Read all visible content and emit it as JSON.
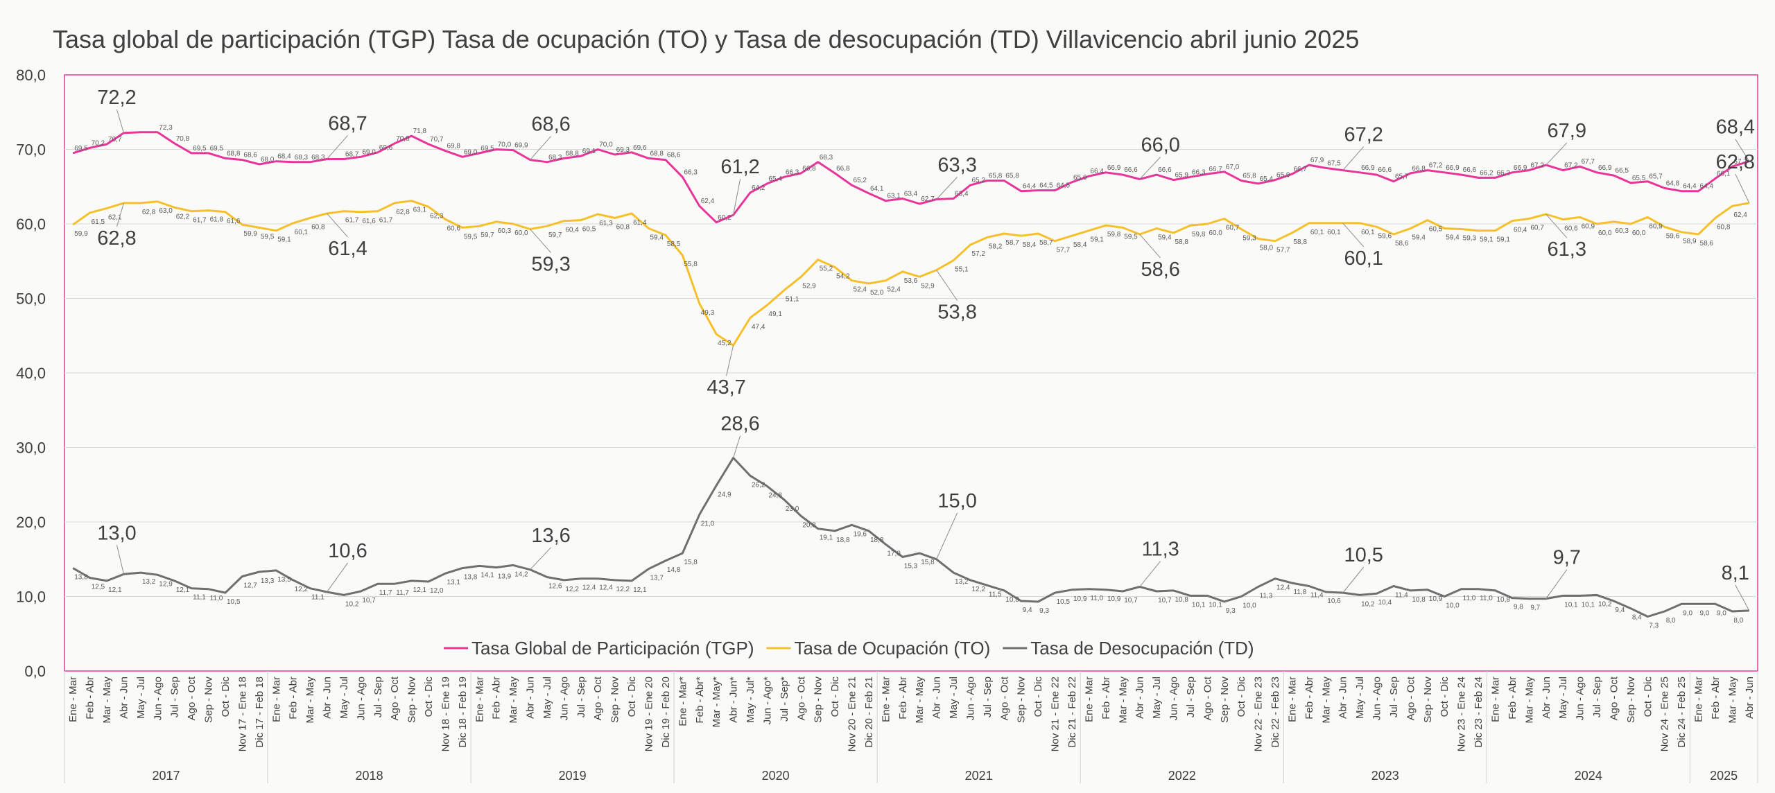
{
  "chart_data": {
    "type": "line",
    "title": "Tasa global de participación (TGP) Tasa de ocupación (TO) y Tasa de desocupación (TD) Villavicencio abril junio 2025",
    "xlabel": "",
    "ylabel": "",
    "ylim": [
      0,
      80
    ],
    "yticks": [
      "0,0",
      "10,0",
      "20,0",
      "30,0",
      "40,0",
      "50,0",
      "60,0",
      "70,0",
      "80,0"
    ],
    "grid": true,
    "legend_position": "bottom-inside",
    "categories": [
      "Ene - Mar",
      "Feb - Abr",
      "Mar - May",
      "Abr - Jun",
      "May - Jul",
      "Jun - Ago",
      "Jul - Sep",
      "Ago - Oct",
      "Sep - Nov",
      "Oct - Dic",
      "Nov 17 - Ene 18",
      "Dic 17 - Feb 18",
      "Ene - Mar",
      "Feb - Abr",
      "Mar - May",
      "Abr - Jun",
      "May - Jul",
      "Jun - Ago",
      "Jul - Sep",
      "Ago - Oct",
      "Sep - Nov",
      "Oct - Dic",
      "Nov 18 - Ene 19",
      "Dic 18 - Feb 19",
      "Ene - Mar",
      "Feb - Abr",
      "Mar - May",
      "Abr - Jun",
      "May - Jul",
      "Jun - Ago",
      "Jul - Sep",
      "Ago - Oct",
      "Sep - Nov",
      "Oct - Dic",
      "Nov 19 - Ene 20",
      "Dic 19 - Feb 20",
      "Ene - Mar*",
      "Feb - Abr*",
      "Mar - May*",
      "Abr - Jun*",
      "May - Jul*",
      "Jun - Ago*",
      "Jul - Sep*",
      "Ago - Oct",
      "Sep - Nov",
      "Oct - Dic",
      "Nov 20 - Ene 21",
      "Dic 20 - Feb 21",
      "Ene - Mar",
      "Feb - Abr",
      "Mar - May",
      "Abr - Jun",
      "May - Jul",
      "Jun - Ago",
      "Jul - Sep",
      "Ago - Oct",
      "Sep - Nov",
      "Oct - Dic",
      "Nov 21 - Ene 22",
      "Dic 21 - Feb 22",
      "Ene - Mar",
      "Feb - Abr",
      "Mar - May",
      "Abr - Jun",
      "May - Jul",
      "Jun - Ago",
      "Jul - Sep",
      "Ago - Oct",
      "Sep - Nov",
      "Oct - Dic",
      "Nov 22 - Ene 23",
      "Dic 22 - Feb 23",
      "Ene - Mar",
      "Feb - Abr",
      "Mar - May",
      "Abr - Jun",
      "May - Jul",
      "Jun - Ago",
      "Jul - Sep",
      "Ago - Oct",
      "Sep - Nov",
      "Oct - Dic",
      "Nov 23 - Ene 24",
      "Dic 23 - Feb 24",
      "Ene - Mar",
      "Feb - Abr",
      "Mar - May",
      "Abr - Jun",
      "May - Jul",
      "Jun - Ago",
      "Jul - Sep",
      "Ago - Oct",
      "Sep - Nov",
      "Oct - Dic",
      "Nov 24 - Ene 25",
      "Dic 24 - Feb 25",
      "Ene - Mar",
      "Feb - Abr",
      "Mar - May",
      "Abr - Jun"
    ],
    "year_groups": [
      {
        "label": "2017",
        "count": 12
      },
      {
        "label": "2018",
        "count": 12
      },
      {
        "label": "2019",
        "count": 12
      },
      {
        "label": "2020",
        "count": 12
      },
      {
        "label": "2021",
        "count": 12
      },
      {
        "label": "2022",
        "count": 12
      },
      {
        "label": "2023",
        "count": 12
      },
      {
        "label": "2024",
        "count": 12
      },
      {
        "label": "2025",
        "count": 4
      }
    ],
    "series": [
      {
        "name": "Tasa Global de Participación (TGP)",
        "color": "#e8359a",
        "values": [
          69.5,
          70.2,
          70.7,
          72.2,
          72.3,
          72.3,
          70.8,
          69.5,
          69.5,
          68.8,
          68.6,
          68.0,
          68.4,
          68.3,
          68.3,
          68.7,
          68.7,
          69.0,
          69.6,
          70.8,
          71.8,
          70.7,
          69.8,
          69.0,
          69.5,
          70.0,
          69.9,
          68.6,
          68.3,
          68.8,
          69.1,
          70.0,
          69.3,
          69.6,
          68.8,
          68.6,
          66.3,
          62.4,
          60.2,
          61.2,
          64.2,
          65.4,
          66.3,
          66.8,
          68.3,
          66.8,
          65.2,
          64.1,
          63.1,
          63.4,
          62.7,
          63.3,
          63.4,
          65.2,
          65.8,
          65.8,
          64.4,
          64.5,
          64.5,
          65.6,
          66.4,
          66.9,
          66.6,
          66.0,
          66.6,
          65.9,
          66.3,
          66.7,
          67.0,
          65.8,
          65.4,
          65.9,
          66.7,
          67.9,
          67.5,
          67.2,
          66.9,
          66.6,
          65.7,
          66.8,
          67.2,
          66.9,
          66.6,
          66.2,
          66.2,
          66.9,
          67.2,
          67.9,
          67.2,
          67.7,
          66.9,
          66.5,
          65.5,
          65.7,
          64.8,
          64.4,
          64.4,
          66.1,
          67.7,
          68.4
        ],
        "data_labels": [
          "69,5",
          "70,2",
          "70,7",
          "",
          "",
          "72,3",
          "70,8",
          "69,5",
          "69,5",
          "68,8",
          "68,6",
          "68,0",
          "68,4",
          "68,3",
          "68,3",
          "",
          "68,7",
          "69,0",
          "69,6",
          "70,8",
          "71,8",
          "70,7",
          "69,8",
          "69,0",
          "69,5",
          "70,0",
          "69,9",
          "",
          "68,3",
          "68,8",
          "69,1",
          "70,0",
          "69,3",
          "69,6",
          "68,8",
          "68,6",
          "66,3",
          "62,4",
          "60,2",
          "",
          "64,2",
          "65,4",
          "66,3",
          "66,8",
          "68,3",
          "66,8",
          "65,2",
          "64,1",
          "63,1",
          "63,4",
          "62,7",
          "",
          "63,4",
          "65,2",
          "65,8",
          "65,8",
          "64,4",
          "64,5",
          "64,5",
          "65,6",
          "66,4",
          "66,9",
          "66,6",
          "",
          "66,6",
          "65,9",
          "66,3",
          "66,7",
          "67,0",
          "65,8",
          "65,4",
          "65,9",
          "66,7",
          "67,9",
          "67,5",
          "",
          "66,9",
          "66,6",
          "65,7",
          "66,8",
          "67,2",
          "66,9",
          "66,6",
          "66,2",
          "66,2",
          "66,9",
          "67,2",
          "",
          "67,2",
          "67,7",
          "66,9",
          "66,5",
          "65,5",
          "65,7",
          "64,8",
          "64,4",
          "64,4",
          "66,1",
          "67,7",
          ""
        ],
        "highlights": [
          {
            "index": 3,
            "label": "72,2"
          },
          {
            "index": 15,
            "label": "68,7"
          },
          {
            "index": 27,
            "label": "68,6"
          },
          {
            "index": 39,
            "label": "61,2"
          },
          {
            "index": 51,
            "label": "63,3"
          },
          {
            "index": 63,
            "label": "66,0"
          },
          {
            "index": 75,
            "label": "67,2"
          },
          {
            "index": 87,
            "label": "67,9"
          },
          {
            "index": 99,
            "label": "68,4"
          }
        ]
      },
      {
        "name": "Tasa de Ocupación (TO)",
        "color": "#f5c02c",
        "values": [
          59.9,
          61.5,
          62.1,
          62.8,
          62.8,
          63.0,
          62.2,
          61.7,
          61.8,
          61.6,
          59.9,
          59.5,
          59.1,
          60.1,
          60.8,
          61.4,
          61.7,
          61.6,
          61.7,
          62.8,
          63.1,
          62.3,
          60.6,
          59.5,
          59.7,
          60.3,
          60.0,
          59.3,
          59.7,
          60.4,
          60.5,
          61.3,
          60.8,
          61.4,
          59.4,
          58.5,
          55.8,
          49.3,
          45.2,
          43.7,
          47.4,
          49.1,
          51.1,
          52.9,
          55.2,
          54.2,
          52.4,
          52.0,
          52.4,
          53.6,
          52.9,
          53.8,
          55.1,
          57.2,
          58.2,
          58.7,
          58.4,
          58.7,
          57.7,
          58.4,
          59.1,
          59.8,
          59.5,
          58.6,
          59.4,
          58.8,
          59.8,
          60.0,
          60.7,
          59.3,
          58.0,
          57.7,
          58.8,
          60.1,
          60.1,
          60.1,
          60.1,
          59.6,
          58.6,
          59.4,
          60.5,
          59.4,
          59.3,
          59.1,
          59.1,
          60.4,
          60.7,
          61.3,
          60.6,
          60.9,
          60.0,
          60.3,
          60.0,
          60.9,
          59.6,
          58.9,
          58.6,
          60.8,
          62.4,
          62.8
        ],
        "data_labels": [
          "59,9",
          "61,5",
          "62,1",
          "",
          "62,8",
          "63,0",
          "62,2",
          "61,7",
          "61,8",
          "61,6",
          "59,9",
          "59,5",
          "59,1",
          "60,1",
          "60,8",
          "",
          "61,7",
          "61,6",
          "61,7",
          "62,8",
          "63,1",
          "62,3",
          "60,6",
          "59,5",
          "59,7",
          "60,3",
          "60,0",
          "",
          "59,7",
          "60,4",
          "60,5",
          "61,3",
          "60,8",
          "61,4",
          "59,4",
          "58,5",
          "55,8",
          "49,3",
          "45,2",
          "",
          "47,4",
          "49,1",
          "51,1",
          "52,9",
          "55,2",
          "54,2",
          "52,4",
          "52,0",
          "52,4",
          "53,6",
          "52,9",
          "",
          "55,1",
          "57,2",
          "58,2",
          "58,7",
          "58,4",
          "58,7",
          "57,7",
          "58,4",
          "59,1",
          "59,8",
          "59,5",
          "",
          "59,4",
          "58,8",
          "59,8",
          "60,0",
          "60,7",
          "59,3",
          "58,0",
          "57,7",
          "58,8",
          "60,1",
          "60,1",
          "",
          "60,1",
          "59,6",
          "58,6",
          "59,4",
          "60,5",
          "59,4",
          "59,3",
          "59,1",
          "59,1",
          "60,4",
          "60,7",
          "",
          "60,6",
          "60,9",
          "60,0",
          "60,3",
          "60,0",
          "60,9",
          "59,6",
          "58,9",
          "58,6",
          "60,8",
          "62,4",
          ""
        ],
        "highlights": [
          {
            "index": 3,
            "label": "62,8"
          },
          {
            "index": 15,
            "label": "61,4"
          },
          {
            "index": 27,
            "label": "59,3"
          },
          {
            "index": 39,
            "label": "43,7"
          },
          {
            "index": 51,
            "label": "53,8"
          },
          {
            "index": 63,
            "label": "58,6"
          },
          {
            "index": 75,
            "label": "60,1"
          },
          {
            "index": 87,
            "label": "61,3"
          },
          {
            "index": 99,
            "label": "62,8"
          }
        ]
      },
      {
        "name": "Tasa de Desocupación (TD)",
        "color": "#6f6f6f",
        "values": [
          13.8,
          12.5,
          12.1,
          13.0,
          13.2,
          12.9,
          12.1,
          11.1,
          11.0,
          10.5,
          12.7,
          13.3,
          13.5,
          12.2,
          11.1,
          10.6,
          10.2,
          10.7,
          11.7,
          11.7,
          12.1,
          12.0,
          13.1,
          13.8,
          14.1,
          13.9,
          14.2,
          13.6,
          12.6,
          12.2,
          12.4,
          12.4,
          12.2,
          12.1,
          13.7,
          14.8,
          15.8,
          21.0,
          24.9,
          28.6,
          26.2,
          24.8,
          23.0,
          20.8,
          19.1,
          18.8,
          19.6,
          18.8,
          17.0,
          15.3,
          15.8,
          15.0,
          13.2,
          12.2,
          11.5,
          10.8,
          9.4,
          9.3,
          10.5,
          10.9,
          11.0,
          10.9,
          10.7,
          11.3,
          10.7,
          10.8,
          10.1,
          10.1,
          9.3,
          10.0,
          11.3,
          12.4,
          11.8,
          11.4,
          10.6,
          10.5,
          10.2,
          10.4,
          11.4,
          10.8,
          10.9,
          10.0,
          11.0,
          11.0,
          10.8,
          9.8,
          9.7,
          9.7,
          10.1,
          10.1,
          10.2,
          9.4,
          8.4,
          7.3,
          8.0,
          9.0,
          9.0,
          9.0,
          8.0,
          8.1
        ],
        "data_labels": [
          "13,8",
          "12,5",
          "12,1",
          "",
          "13,2",
          "12,9",
          "12,1",
          "11,1",
          "11,0",
          "10,5",
          "12,7",
          "13,3",
          "13,5",
          "12,2",
          "11,1",
          "",
          "10,2",
          "10,7",
          "11,7",
          "11,7",
          "12,1",
          "12,0",
          "13,1",
          "13,8",
          "14,1",
          "13,9",
          "14,2",
          "",
          "12,6",
          "12,2",
          "12,4",
          "12,4",
          "12,2",
          "12,1",
          "13,7",
          "14,8",
          "15,8",
          "21,0",
          "24,9",
          "",
          "26,2",
          "24,8",
          "23,0",
          "20,8",
          "19,1",
          "18,8",
          "19,6",
          "18,8",
          "17,0",
          "15,3",
          "15,8",
          "",
          "13,2",
          "12,2",
          "11,5",
          "10,8",
          "9,4",
          "9,3",
          "10,5",
          "10,9",
          "11,0",
          "10,9",
          "10,7",
          "",
          "10,7",
          "10,8",
          "10,1",
          "10,1",
          "9,3",
          "10,0",
          "11,3",
          "12,4",
          "11,8",
          "11,4",
          "10,6",
          "",
          "10,2",
          "10,4",
          "11,4",
          "10,8",
          "10,9",
          "10,0",
          "11,0",
          "11,0",
          "10,8",
          "9,8",
          "9,7",
          "",
          "10,1",
          "10,1",
          "10,2",
          "9,4",
          "8,4",
          "7,3",
          "8,0",
          "9,0",
          "9,0",
          "9,0",
          "8,0",
          ""
        ],
        "highlights": [
          {
            "index": 3,
            "label": "13,0"
          },
          {
            "index": 15,
            "label": "10,6"
          },
          {
            "index": 27,
            "label": "13,6"
          },
          {
            "index": 39,
            "label": "28,6"
          },
          {
            "index": 51,
            "label": "15,0"
          },
          {
            "index": 63,
            "label": "11,3"
          },
          {
            "index": 75,
            "label": "10,5"
          },
          {
            "index": 87,
            "label": "9,7"
          },
          {
            "index": 99,
            "label": "8,1"
          }
        ]
      }
    ]
  }
}
